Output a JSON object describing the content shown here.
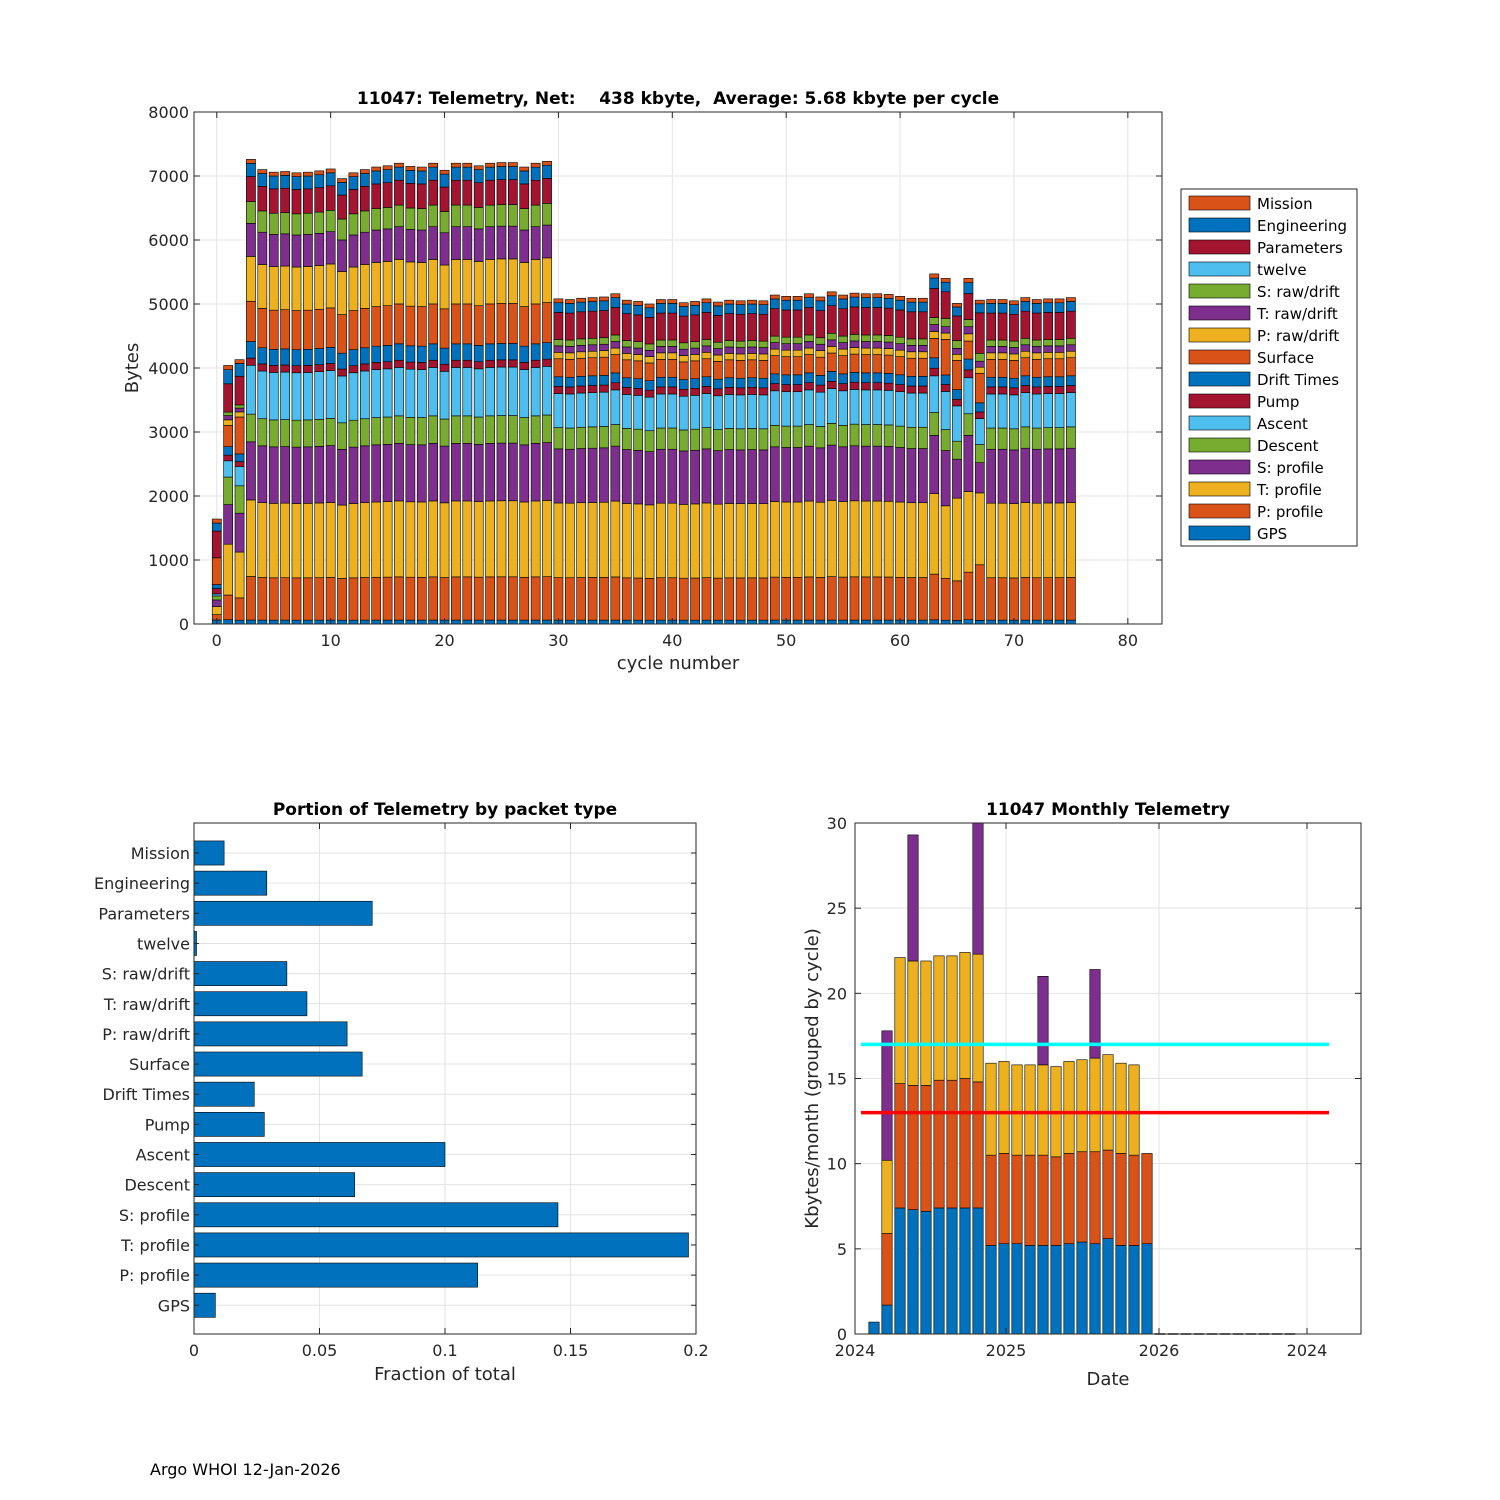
{
  "footer": "Argo WHOI 12-Jan-2026",
  "chart_data": [
    {
      "type": "bar",
      "stacked": true,
      "title": "11047: Telemetry, Net:    438 kbyte,  Average: 5.68 kbyte per cycle",
      "xlabel": "cycle number",
      "ylabel": "Bytes",
      "xlim": [
        -2,
        83
      ],
      "ylim": [
        0,
        8000
      ],
      "xticks": [
        0,
        10,
        20,
        30,
        40,
        50,
        60,
        70,
        80
      ],
      "yticks": [
        0,
        1000,
        2000,
        3000,
        4000,
        5000,
        6000,
        7000,
        8000
      ],
      "grid": true,
      "legend_position": "outside-right",
      "stack_order": [
        "GPS",
        "P: profile",
        "T: profile",
        "S: profile",
        "Descent",
        "Ascent",
        "Pump",
        "Drift Times",
        "Surface",
        "P: raw/drift",
        "T: raw/drift",
        "S: raw/drift",
        "twelve",
        "Parameters",
        "Engineering",
        "Mission"
      ],
      "legend": [
        "Mission",
        "Engineering",
        "Parameters",
        "twelve",
        "S: raw/drift",
        "T: raw/drift",
        "P: raw/drift",
        "Surface",
        "Drift Times",
        "Pump",
        "Ascent",
        "Descent",
        "S: profile",
        "T: profile",
        "P: profile",
        "GPS"
      ],
      "colors": {
        "Mission": "#D95319",
        "Engineering": "#0072BD",
        "Parameters": "#A2142F",
        "twelve": "#4DBEEE",
        "S: raw/drift": "#77AC30",
        "T: raw/drift": "#7E2F8E",
        "P: raw/drift": "#EDB120",
        "Surface": "#D95319",
        "Drift Times": "#0072BD",
        "Pump": "#A2142F",
        "Ascent": "#4DBEEE",
        "Descent": "#77AC30",
        "S: profile": "#7E2F8E",
        "T: profile": "#EDB120",
        "P: profile": "#D95319",
        "GPS": "#0072BD"
      },
      "profile_types": {
        "cycle0": [
          60,
          80,
          120,
          100,
          60,
          30,
          80,
          60,
          400,
          0,
          0,
          0,
          0,
          400,
          120,
          60
        ],
        "cycle1": [
          60,
          350,
          720,
          560,
          390,
          230,
          80,
          120,
          300,
          80,
          60,
          50,
          0,
          400,
          200,
          60
        ],
        "cycle2": [
          60,
          350,
          720,
          610,
          430,
          300,
          80,
          120,
          580,
          80,
          60,
          50,
          0,
          450,
          200,
          60
        ],
        "full": [
          60,
          660,
          1160,
          880,
          420,
          740,
          110,
          250,
          610,
          680,
          500,
          330,
          0,
          380,
          200,
          60
        ],
        "reduced": [
          60,
          660,
          1160,
          840,
          330,
          530,
          110,
          150,
          280,
          100,
          100,
          100,
          0,
          420,
          150,
          60
        ],
        "c64": [
          60,
          660,
          1140,
          870,
          330,
          600,
          110,
          150,
          560,
          100,
          100,
          130,
          0,
          420,
          150,
          60
        ],
        "c65": [
          60,
          660,
          1380,
          650,
          300,
          590,
          110,
          160,
          490,
          100,
          100,
          130,
          0,
          410,
          150,
          60
        ],
        "c66": [
          60,
          660,
          1120,
          780,
          300,
          500,
          110,
          150,
          250,
          100,
          100,
          100,
          0,
          360,
          150,
          60
        ],
        "c67": [
          60,
          920,
          1190,
          500,
          300,
          430,
          110,
          150,
          490,
          100,
          100,
          130,
          0,
          670,
          150,
          60
        ]
      },
      "cycles": [
        0,
        1,
        2,
        3,
        4,
        5,
        6,
        7,
        8,
        9,
        10,
        11,
        12,
        13,
        14,
        15,
        16,
        17,
        18,
        19,
        20,
        21,
        22,
        23,
        24,
        25,
        26,
        27,
        28,
        29,
        30,
        31,
        32,
        33,
        34,
        35,
        36,
        37,
        38,
        39,
        40,
        41,
        42,
        43,
        44,
        45,
        46,
        47,
        48,
        49,
        50,
        51,
        52,
        53,
        54,
        55,
        56,
        57,
        58,
        59,
        60,
        61,
        62,
        63,
        64,
        65,
        66,
        67,
        68,
        69,
        70,
        71,
        72,
        73,
        74,
        75
      ],
      "cycle_profile": [
        "cycle0",
        "cycle1",
        "cycle2",
        "full",
        "full",
        "full",
        "full",
        "full",
        "full",
        "full",
        "full",
        "full",
        "full",
        "full",
        "full",
        "full",
        "full",
        "full",
        "full",
        "full",
        "full",
        "full",
        "full",
        "full",
        "full",
        "full",
        "full",
        "full",
        "full",
        "full",
        "reduced",
        "reduced",
        "reduced",
        "reduced",
        "reduced",
        "reduced",
        "reduced",
        "reduced",
        "reduced",
        "reduced",
        "reduced",
        "reduced",
        "reduced",
        "reduced",
        "reduced",
        "reduced",
        "reduced",
        "reduced",
        "reduced",
        "reduced",
        "reduced",
        "reduced",
        "reduced",
        "reduced",
        "reduced",
        "reduced",
        "reduced",
        "reduced",
        "reduced",
        "reduced",
        "reduced",
        "reduced",
        "reduced",
        "reduced",
        "c64",
        "c65",
        "c66",
        "c67",
        "reduced",
        "reduced",
        "reduced",
        "reduced",
        "reduced",
        "reduced",
        "reduced",
        "reduced"
      ],
      "totals": [
        1640,
        4040,
        4130,
        7260,
        7100,
        7060,
        7070,
        7050,
        7060,
        7080,
        7110,
        6960,
        7050,
        7100,
        7140,
        7160,
        7200,
        7150,
        7140,
        7200,
        7090,
        7200,
        7200,
        7160,
        7200,
        7210,
        7210,
        7140,
        7200,
        7230,
        5080,
        5070,
        5090,
        5100,
        5110,
        5160,
        5060,
        5040,
        5000,
        5070,
        5070,
        5020,
        5040,
        5080,
        5030,
        5060,
        5050,
        5060,
        5050,
        5140,
        5120,
        5120,
        5160,
        5110,
        5190,
        5140,
        5170,
        5160,
        5160,
        5150,
        5120,
        5090,
        5090,
        5470,
        5400,
        5010,
        5400,
        5060,
        5070,
        5070,
        5050,
        5100,
        5070,
        5080,
        5080,
        5100
      ]
    },
    {
      "type": "barh",
      "title": "Portion of Telemetry by packet type",
      "xlabel": "Fraction of total",
      "ylabel": "",
      "xlim": [
        0,
        0.2
      ],
      "xticks": [
        0,
        0.05,
        0.1,
        0.15,
        0.2
      ],
      "xtick_labels": [
        "0",
        "0.05",
        "0.1",
        "0.15",
        "0.2"
      ],
      "grid": true,
      "color": "#0072BD",
      "categories": [
        "Mission",
        "Engineering",
        "Parameters",
        "twelve",
        "S: raw/drift",
        "T: raw/drift",
        "P: raw/drift",
        "Surface",
        "Drift Times",
        "Pump",
        "Ascent",
        "Descent",
        "S: profile",
        "T: profile",
        "P: profile",
        "GPS"
      ],
      "values": [
        0.012,
        0.029,
        0.071,
        0.001,
        0.037,
        0.045,
        0.061,
        0.067,
        0.024,
        0.028,
        0.1,
        0.064,
        0.145,
        0.197,
        0.113,
        0.0085
      ]
    },
    {
      "type": "bar",
      "stacked": true,
      "title": "11047 Monthly Telemetry",
      "xlabel": "Date",
      "ylabel": "Kbytes/month (grouped by cycle)",
      "ylim": [
        0,
        30
      ],
      "yticks": [
        0,
        5,
        10,
        15,
        20,
        25,
        30
      ],
      "xtick_labels": [
        "2024",
        "2025",
        "2026",
        "2024"
      ],
      "grid": true,
      "series_colors": [
        "#0072BD",
        "#D95319",
        "#EDB120",
        "#7E2F8E"
      ],
      "months": 33,
      "series": [
        {
          "name": "segment1",
          "values": [
            0.7,
            1.7,
            7.4,
            7.3,
            7.2,
            7.4,
            7.4,
            7.4,
            7.4,
            5.2,
            5.3,
            5.3,
            5.2,
            5.2,
            5.2,
            5.3,
            5.4,
            5.3,
            5.6,
            5.2,
            5.2,
            5.3,
            0,
            0,
            0,
            0,
            0,
            0,
            0,
            0,
            0,
            0,
            0
          ]
        },
        {
          "name": "segment2",
          "values": [
            0,
            4.2,
            7.3,
            7.3,
            7.4,
            7.5,
            7.5,
            7.6,
            7.4,
            5.3,
            5.3,
            5.2,
            5.3,
            5.3,
            5.2,
            5.3,
            5.3,
            5.4,
            5.2,
            5.4,
            5.3,
            5.3,
            0,
            0,
            0,
            0,
            0,
            0,
            0,
            0,
            0,
            0,
            0
          ]
        },
        {
          "name": "segment3",
          "values": [
            0,
            4.3,
            7.4,
            7.3,
            7.3,
            7.3,
            7.3,
            7.4,
            7.5,
            5.4,
            5.4,
            5.3,
            5.3,
            5.3,
            5.3,
            5.4,
            5.4,
            5.5,
            5.6,
            5.3,
            5.3,
            0,
            0,
            0,
            0,
            0,
            0,
            0,
            0,
            0,
            0,
            0,
            0
          ]
        },
        {
          "name": "segment4",
          "values": [
            0,
            7.6,
            0,
            7.4,
            0,
            0,
            0,
            0,
            7.7,
            0,
            0,
            0,
            0,
            5.2,
            0,
            0,
            0,
            5.2,
            0,
            0,
            0,
            0,
            0,
            0,
            0,
            0,
            0,
            0,
            0,
            0,
            0,
            0,
            0
          ]
        }
      ],
      "hlines": [
        {
          "value": 17,
          "color": "#00FFFF"
        },
        {
          "value": 13,
          "color": "#FF0000"
        }
      ]
    }
  ]
}
